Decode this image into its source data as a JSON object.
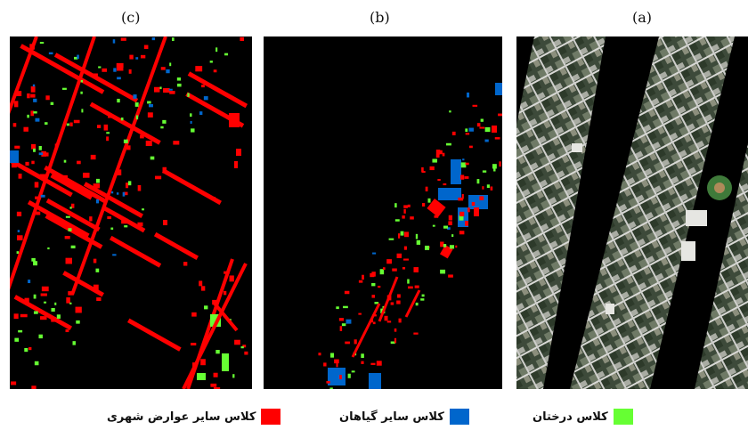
{
  "panels": {
    "c": {
      "label": "(c)"
    },
    "b": {
      "label": "(b)"
    },
    "a": {
      "label": "(a)"
    }
  },
  "legend": [
    {
      "text": "کلاس سایر عوارض شهری",
      "color": "#ff0000"
    },
    {
      "text": "کلاس سایر گیاهان",
      "color": "#0066cc"
    },
    {
      "text": "کلاس درختان",
      "color": "#66ff33"
    }
  ]
}
